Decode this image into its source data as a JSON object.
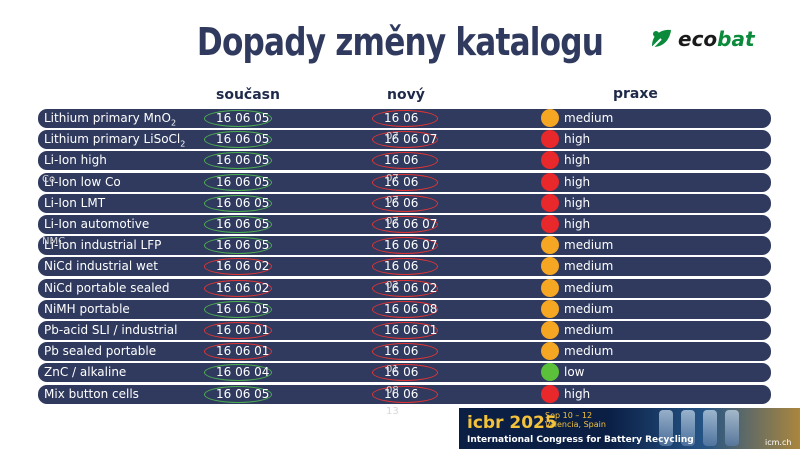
{
  "title": "Dopady změny katalogu",
  "logo": {
    "text_main": "eco",
    "text_accent": "bat",
    "brand_color": "#0a8a3a"
  },
  "columns": {
    "current": "současn",
    "new": "nový",
    "practice": "praxe"
  },
  "colors": {
    "row_bg": "#2f3a5e",
    "cur_oval_green": "#4caf50",
    "cur_oval_red": "#e03535",
    "new_oval": "#e03535",
    "medium": "#f5a623",
    "high": "#e8282b",
    "low": "#5cc13a"
  },
  "rows": [
    {
      "name": "Lithium primary MnO",
      "sub": "2",
      "current": "16 06 05",
      "cur_oval": "green",
      "new": "16 06",
      "status": "medium"
    },
    {
      "name": "Lithium primary LiSoCl",
      "sub": "2",
      "current": "16 06 05",
      "cur_oval": "green",
      "new": "16 06 07",
      "status": "high"
    },
    {
      "name": "Li-Ion high",
      "sub": "",
      "current": "16 06 05",
      "cur_oval": "green",
      "new": "16 06",
      "status": "high"
    },
    {
      "name": "Li-Ion low Co",
      "sub": "",
      "current": "16 06 05",
      "cur_oval": "green",
      "new": "16 06",
      "status": "high"
    },
    {
      "name": "Li-Ion LMT",
      "sub": "",
      "current": "16 06 05",
      "cur_oval": "green",
      "new": "16 06",
      "status": "high"
    },
    {
      "name": "Li-Ion automotive",
      "sub": "",
      "current": "16 06 05",
      "cur_oval": "green",
      "new": "16 06 07",
      "status": "high"
    },
    {
      "name": "Li-Ion industrial LFP",
      "sub": "",
      "current": "16 06 05",
      "cur_oval": "green",
      "new": "16 06 07",
      "status": "medium"
    },
    {
      "name": "NiCd industrial wet",
      "sub": "",
      "current": "16 06 02",
      "cur_oval": "red",
      "new": "16 06",
      "status": "medium"
    },
    {
      "name": "NiCd portable sealed",
      "sub": "",
      "current": "16 06 02",
      "cur_oval": "red",
      "new": "16 06 02",
      "status": "medium"
    },
    {
      "name": "NiMH portable",
      "sub": "",
      "current": "16 06 05",
      "cur_oval": "green",
      "new": "16 06 08",
      "status": "medium"
    },
    {
      "name": "Pb-acid SLI / industrial",
      "sub": "",
      "current": "16 06 01",
      "cur_oval": "red",
      "new": "16 06 01",
      "status": "medium"
    },
    {
      "name": "Pb sealed portable",
      "sub": "",
      "current": "16 06 01",
      "cur_oval": "red",
      "new": "16 06",
      "status": "medium"
    },
    {
      "name": "ZnC / alkaline",
      "sub": "",
      "current": "16 06 04",
      "cur_oval": "green",
      "new": "16 06",
      "status": "low"
    },
    {
      "name": "Mix button cells",
      "sub": "",
      "current": "16 06 05",
      "cur_oval": "green",
      "new": "16 06",
      "status": "high"
    }
  ],
  "overflow_fragments": [
    "Co",
    "NMC",
    "07",
    "07",
    "07",
    "07",
    "02",
    "01",
    "08",
    "13"
  ],
  "banner": {
    "logo": "icbr 2025",
    "dates_line1": "Sep 10 – 12",
    "dates_line2": "Valencia, Spain",
    "description": "International Congress for Battery Recycling",
    "site": "icm.ch"
  }
}
